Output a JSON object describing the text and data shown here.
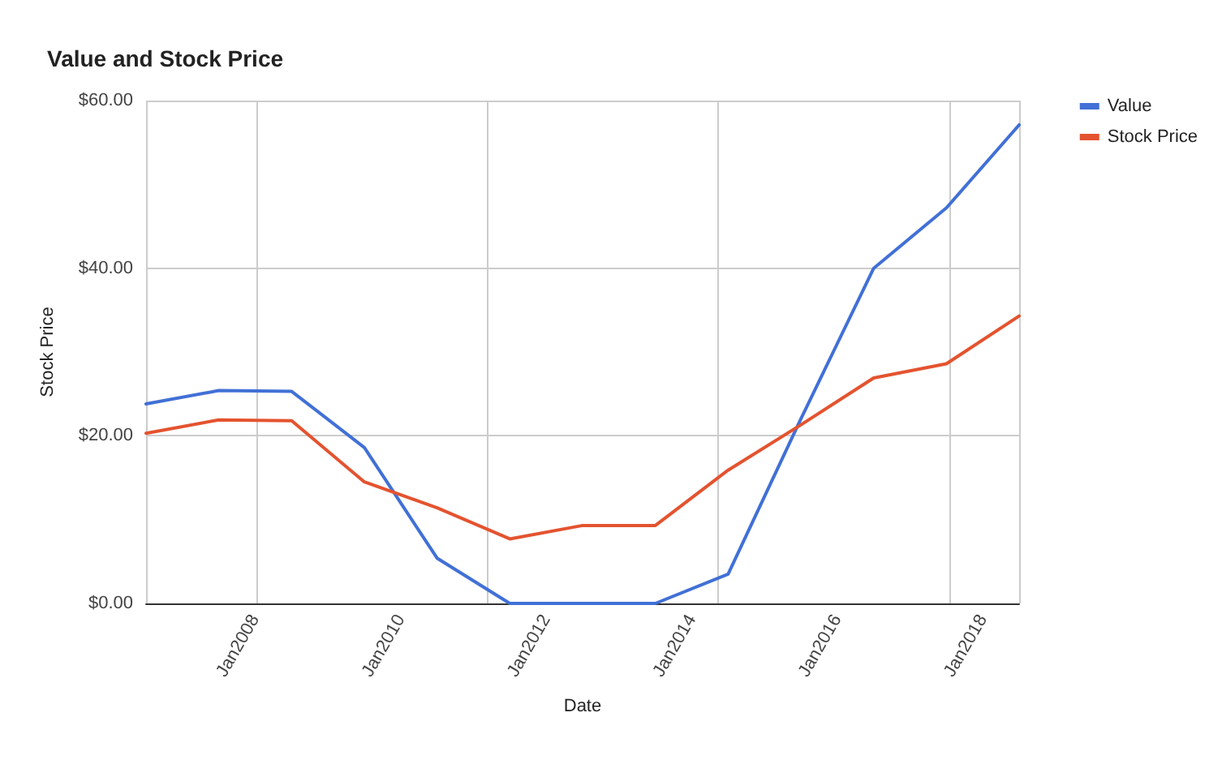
{
  "chart_data": {
    "type": "line",
    "title": "Value and Stock Price",
    "xlabel": "Date",
    "ylabel": "Stock Price",
    "x": [
      "2006-07",
      "2007-07",
      "2008-07",
      "2009-07",
      "2010-07",
      "2011-07",
      "2012-07",
      "2013-07",
      "2014-07",
      "2015-07",
      "2016-07",
      "2017-07",
      "2018-07"
    ],
    "series": [
      {
        "name": "Value",
        "color": "#4170d6",
        "values": [
          23.8,
          25.4,
          25.3,
          18.6,
          5.4,
          0,
          0,
          0,
          3.5,
          22,
          40,
          47.2,
          57.1
        ]
      },
      {
        "name": "Stock Price",
        "color": "#e4532f",
        "values": [
          20.3,
          21.9,
          21.8,
          14.5,
          11.4,
          7.7,
          9.3,
          9.3,
          15.9,
          21.3,
          26.9,
          28.6,
          34.3
        ]
      }
    ],
    "xlim": [
      "2006-07",
      "2018-07"
    ],
    "xticks": [
      {
        "value": "2008-01",
        "label": "Jan2008"
      },
      {
        "value": "2010-01",
        "label": "Jan2010"
      },
      {
        "value": "2012-01",
        "label": "Jan2012"
      },
      {
        "value": "2014-01",
        "label": "Jan2014"
      },
      {
        "value": "2016-01",
        "label": "Jan2016"
      },
      {
        "value": "2018-01",
        "label": "Jan2018"
      }
    ],
    "ylim": [
      0,
      60
    ],
    "yticks": [
      {
        "value": 0,
        "label": "$0.00"
      },
      {
        "value": 20,
        "label": "$20.00"
      },
      {
        "value": 40,
        "label": "$40.00"
      },
      {
        "value": 60,
        "label": "$60.00"
      }
    ],
    "grid": true,
    "legend": "top right",
    "marker": "none",
    "line_style": "solid"
  }
}
